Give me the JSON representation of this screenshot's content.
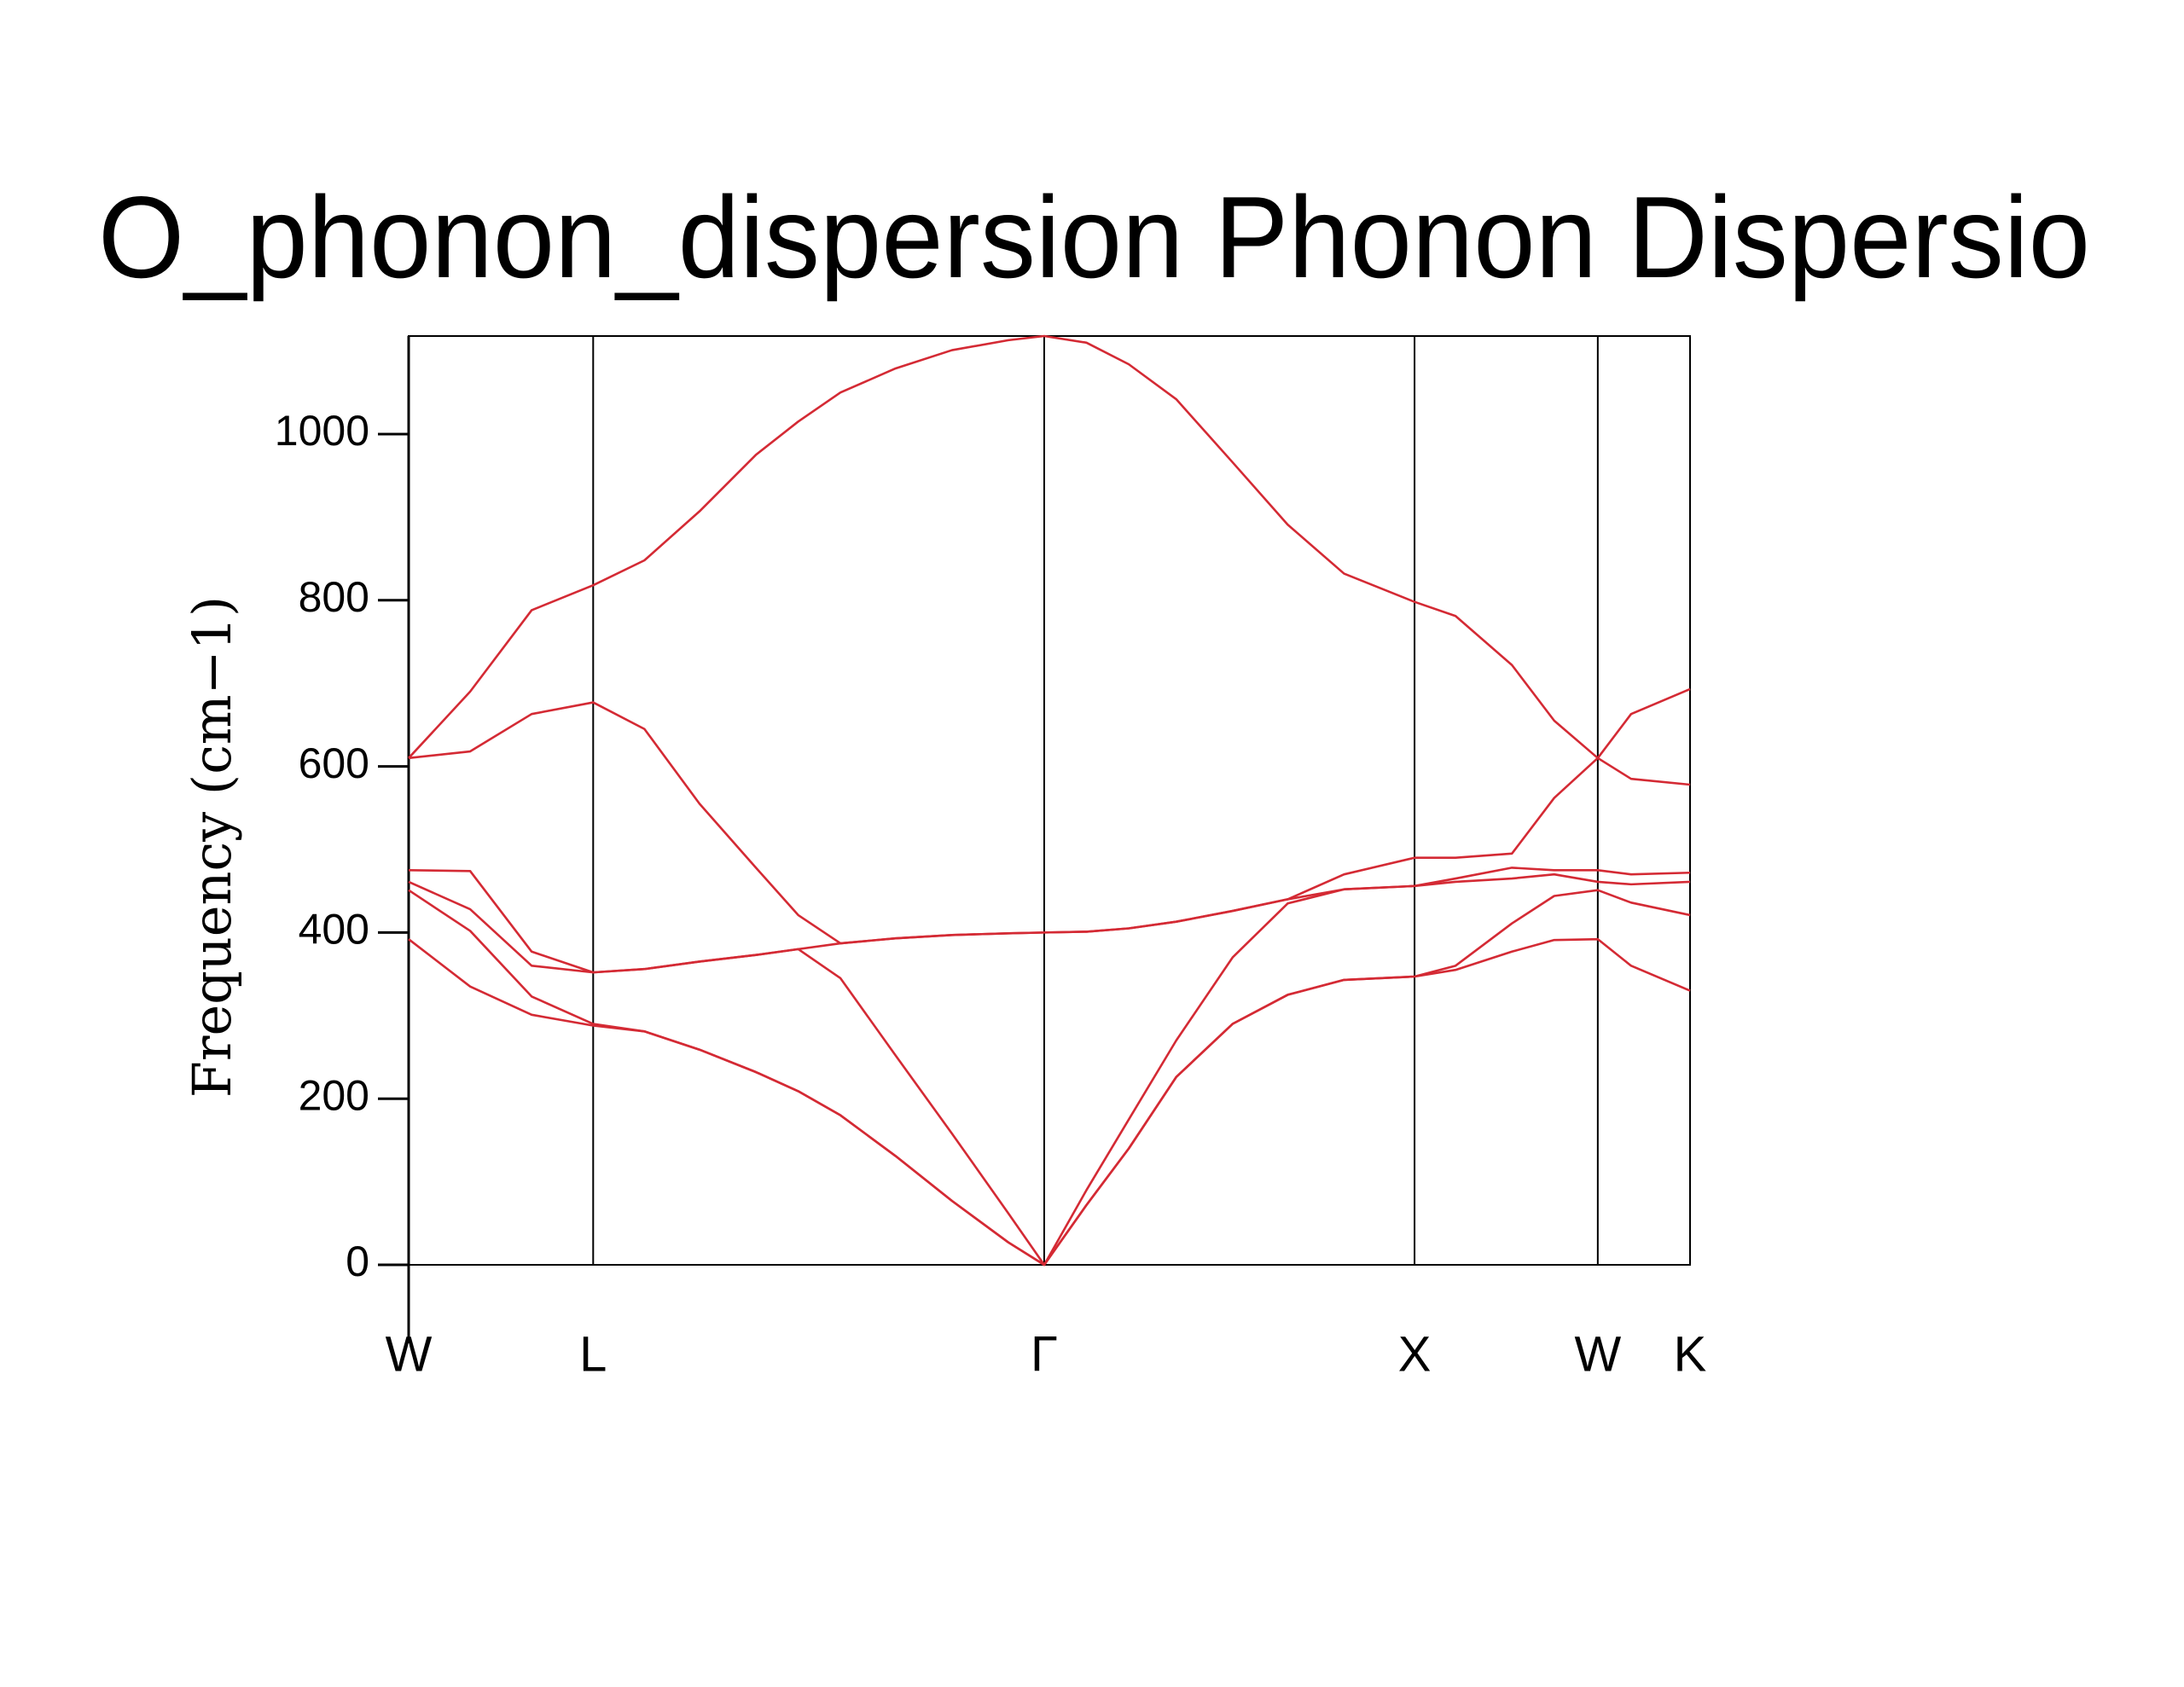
{
  "chart_data": {
    "type": "line",
    "title": "O_phonon_dispersion Phonon Dispersio",
    "y_label": "Frequency (cm−1)",
    "x": [
      0,
      0.048,
      0.096,
      0.144,
      0.184,
      0.227,
      0.271,
      0.304,
      0.337,
      0.38,
      0.424,
      0.468,
      0.496,
      0.529,
      0.562,
      0.599,
      0.643,
      0.686,
      0.73,
      0.785,
      0.817,
      0.861,
      0.894,
      0.928,
      0.954,
      1
    ],
    "xlim": [
      0,
      1
    ],
    "xticks": [
      {
        "value": 0,
        "label": "W"
      },
      {
        "value": 0.144,
        "label": "L"
      },
      {
        "value": 0.496,
        "label": "Γ"
      },
      {
        "value": 0.785,
        "label": "X"
      },
      {
        "value": 0.928,
        "label": "W"
      },
      {
        "value": 1,
        "label": "K"
      }
    ],
    "xgrid": true,
    "ylim": [
      0,
      1118
    ],
    "yticks": [
      0,
      200,
      400,
      600,
      800,
      1000
    ],
    "series": [
      {
        "color": "#d42a34",
        "values": [
          610,
          690,
          788,
          818,
          848,
          907,
          975,
          1015,
          1050,
          1079,
          1101,
          1113,
          1118,
          1110,
          1084,
          1042,
          966,
          891,
          832,
          798,
          781,
          722,
          655,
          610,
          663,
          693
        ]
      },
      {
        "color": "#d42a34",
        "values": [
          610,
          618,
          663,
          677,
          645,
          555,
          478,
          421,
          387,
          393,
          397,
          399,
          400,
          401,
          405,
          413,
          426,
          440,
          470,
          490,
          490,
          495,
          562,
          610,
          585,
          578
        ]
      },
      {
        "color": "#d42a34",
        "values": [
          475,
          474,
          377,
          352,
          356,
          365,
          373,
          380,
          387,
          393,
          397,
          399,
          400,
          401,
          405,
          413,
          426,
          440,
          452,
          456,
          465,
          478,
          475,
          475,
          470,
          472
        ]
      },
      {
        "color": "#d42a34",
        "values": [
          461,
          428,
          360,
          352,
          356,
          365,
          373,
          380,
          345,
          252,
          158,
          62,
          0,
          90,
          175,
          270,
          370,
          435,
          452,
          456,
          461,
          465,
          470,
          461,
          458,
          461
        ]
      },
      {
        "color": "#d42a34",
        "values": [
          451,
          402,
          323,
          290,
          281,
          259,
          232,
          209,
          180,
          131,
          77,
          27,
          0,
          72,
          140,
          226,
          290,
          325,
          343,
          347,
          360,
          411,
          444,
          451,
          436,
          421
        ]
      },
      {
        "color": "#d42a34",
        "values": [
          392,
          335,
          301,
          288,
          281,
          259,
          232,
          209,
          180,
          131,
          77,
          27,
          0,
          72,
          140,
          226,
          290,
          325,
          343,
          347,
          355,
          377,
          391,
          392,
          360,
          330
        ]
      }
    ]
  }
}
